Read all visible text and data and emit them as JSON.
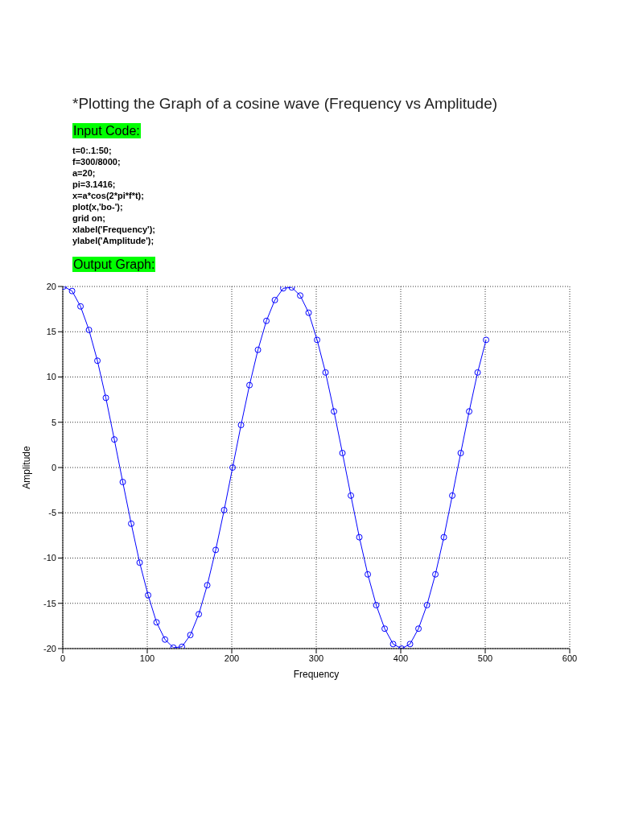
{
  "chart_data": {
    "type": "line",
    "title": "*Plotting the Graph of a cosine wave (Frequency vs Amplitude)",
    "annotations": [
      "Input Code:",
      "t=0:.1:50;",
      "f=300/8000;",
      "a=20;",
      "pi=3.1416;",
      "x=a*cos(2*pi*f*t);",
      "plot(x,'bo-');",
      "grid on;",
      "xlabel('Frequency');",
      "ylabel('Amplitude');",
      "Output Graph:"
    ],
    "xlabel": "Frequency",
    "ylabel": "Amplitude",
    "x": [
      1,
      11,
      21,
      31,
      41,
      51,
      61,
      71,
      81,
      91,
      101,
      111,
      121,
      131,
      141,
      151,
      161,
      171,
      181,
      191,
      201,
      211,
      221,
      231,
      241,
      251,
      261,
      271,
      281,
      291,
      301,
      311,
      321,
      331,
      341,
      351,
      361,
      371,
      381,
      391,
      401,
      411,
      421,
      431,
      441,
      451,
      461,
      471,
      481,
      491,
      501
    ],
    "series": [
      {
        "color": "#0000ff",
        "values": [
          20,
          19.5,
          17.8,
          15.2,
          11.8,
          7.7,
          3.1,
          -1.6,
          -6.2,
          -10.5,
          -14.1,
          -17.1,
          -19.0,
          -19.9,
          -19.8,
          -18.5,
          -16.2,
          -13.0,
          -9.1,
          -4.7,
          0,
          4.7,
          9.1,
          13.0,
          16.2,
          18.5,
          19.8,
          19.9,
          19.0,
          17.1,
          14.1,
          10.5,
          6.2,
          1.6,
          -3.1,
          -7.7,
          -11.8,
          -15.2,
          -17.8,
          -19.5,
          -20,
          -19.5,
          -17.8,
          -15.2,
          -11.8,
          -7.7,
          -3.1,
          1.6,
          6.2,
          10.5,
          14.1
        ]
      }
    ],
    "xlim": [
      0,
      600
    ],
    "xticks": [
      0,
      100,
      200,
      300,
      400,
      500,
      600
    ],
    "ylim": [
      -20,
      20
    ],
    "yticks": [
      -20,
      -15,
      -10,
      -5,
      0,
      5,
      10,
      15,
      20
    ],
    "grid": true,
    "marker": "circle",
    "line_style": "solid",
    "legend": false
  }
}
